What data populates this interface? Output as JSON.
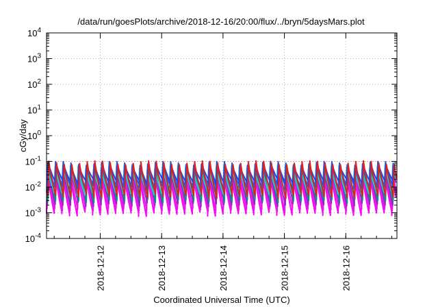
{
  "chart_data": {
    "type": "line",
    "title": "/data/run/goesPlots/archive/2018-12-16/20:00/flux/../bryn/5daysMars.plot",
    "xlabel": "Coordinated Universal Time (UTC)",
    "ylabel": "cGy/day",
    "yscale": "log",
    "ylim": [
      0.0001,
      10000
    ],
    "xlim": [
      "2018-12-11 03:00",
      "2018-12-16 20:00"
    ],
    "x_ticks": [
      "2018-12-12",
      "2018-12-13",
      "2018-12-14",
      "2018-12-15",
      "2018-12-16"
    ],
    "y_ticks": [
      {
        "base": "10",
        "exp": "-4"
      },
      {
        "base": "10",
        "exp": "-3"
      },
      {
        "base": "10",
        "exp": "-2"
      },
      {
        "base": "10",
        "exp": "-1"
      },
      {
        "base": "10",
        "exp": "0"
      },
      {
        "base": "10",
        "exp": "1"
      },
      {
        "base": "10",
        "exp": "2"
      },
      {
        "base": "10",
        "exp": "3"
      },
      {
        "base": "10",
        "exp": "4"
      }
    ],
    "grid": true,
    "reference_line": {
      "y": 0.1,
      "color": "#e0a0a0"
    },
    "cycle_hours": 3,
    "series": [
      {
        "color": "#ff00ff",
        "peak": 0.045,
        "trough": 0.0012
      },
      {
        "color": "#dd22dd",
        "peak": 0.055,
        "trough": 0.0018
      },
      {
        "color": "#9922cc",
        "peak": 0.065,
        "trough": 0.0028
      },
      {
        "color": "#009988",
        "peak": 0.075,
        "trough": 0.004
      },
      {
        "color": "#22cccc",
        "peak": 0.07,
        "trough": 0.008
      },
      {
        "color": "#1c5fe0",
        "peak": 0.1,
        "trough": 0.013
      },
      {
        "color": "#2244ee",
        "peak": 0.09,
        "trough": 0.02
      },
      {
        "color": "#dd2222",
        "peak": 0.105,
        "trough": 0.006
      }
    ],
    "colors": {
      "axis": "#000000",
      "grid": "#b0b0b0"
    }
  }
}
